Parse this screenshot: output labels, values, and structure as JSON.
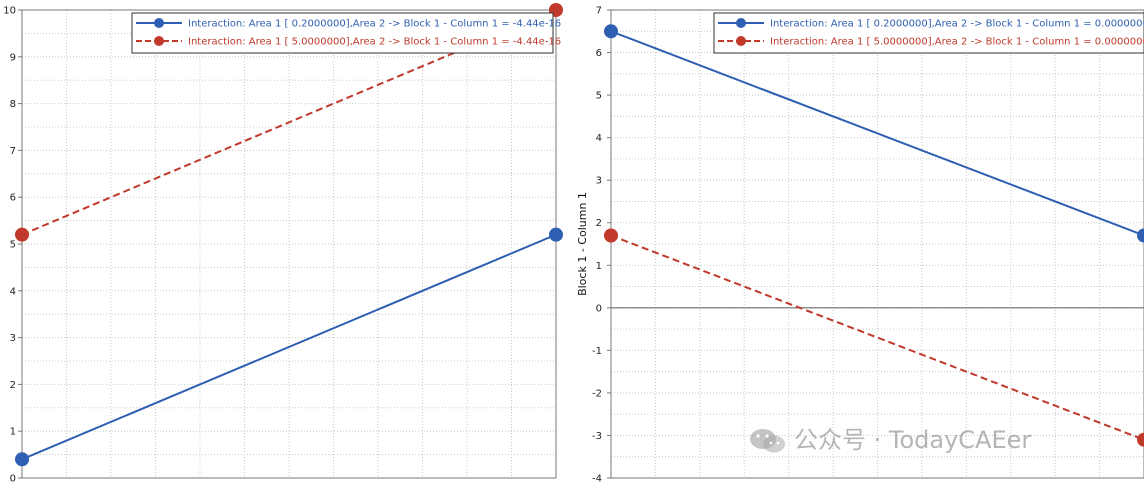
{
  "colors": {
    "series_a": "#2f5fb3",
    "series_b": "#c0392b",
    "grid": "#c8c8c8",
    "frame": "#7a7a7a",
    "zero_line": "#6e6e6e"
  },
  "chart_data": [
    {
      "type": "line",
      "title": "",
      "xlabel": "",
      "ylabel": "",
      "ylim": [
        0,
        10
      ],
      "yticks": [
        "0",
        "1",
        "2",
        "3",
        "4",
        "5",
        "6",
        "7",
        "8",
        "9",
        "10"
      ],
      "grid": true,
      "legend_position": "top-right",
      "x": [
        0,
        1
      ],
      "series": [
        {
          "name": "Interaction: Area 1 [ 0.2000000],Area 2 -> Block 1 - Column 1 = -4.44e-16",
          "style": "solid",
          "color": "#2f5fb3",
          "values": [
            0.4,
            5.2
          ]
        },
        {
          "name": "Interaction: Area 1 [ 5.0000000],Area 2 -> Block 1 - Column 1 = -4.44e-16",
          "style": "dashed",
          "color": "#c0392b",
          "values": [
            5.2,
            10.0
          ]
        }
      ]
    },
    {
      "type": "line",
      "title": "",
      "xlabel": "",
      "ylabel": "Block 1 - Column 1",
      "ylim": [
        -4,
        7
      ],
      "yticks": [
        "-4",
        "-3",
        "-2",
        "-1",
        "0",
        "1",
        "2",
        "3",
        "4",
        "5",
        "6",
        "7"
      ],
      "grid": true,
      "legend_position": "top-right",
      "x": [
        0,
        1
      ],
      "series": [
        {
          "name": "Interaction: Area 1 [ 0.2000000],Area 2 -> Block 1 - Column 1 =  0.0000000",
          "style": "solid",
          "color": "#2f5fb3",
          "values": [
            6.5,
            1.7
          ]
        },
        {
          "name": "Interaction: Area 1 [ 5.0000000],Area 2 -> Block 1 - Column 1 =  0.0000000",
          "style": "dashed",
          "color": "#c0392b",
          "values": [
            1.7,
            -3.1
          ]
        }
      ]
    }
  ],
  "watermark": {
    "text": "公众号 · TodayCAEer",
    "icon": "wechat-icon"
  }
}
